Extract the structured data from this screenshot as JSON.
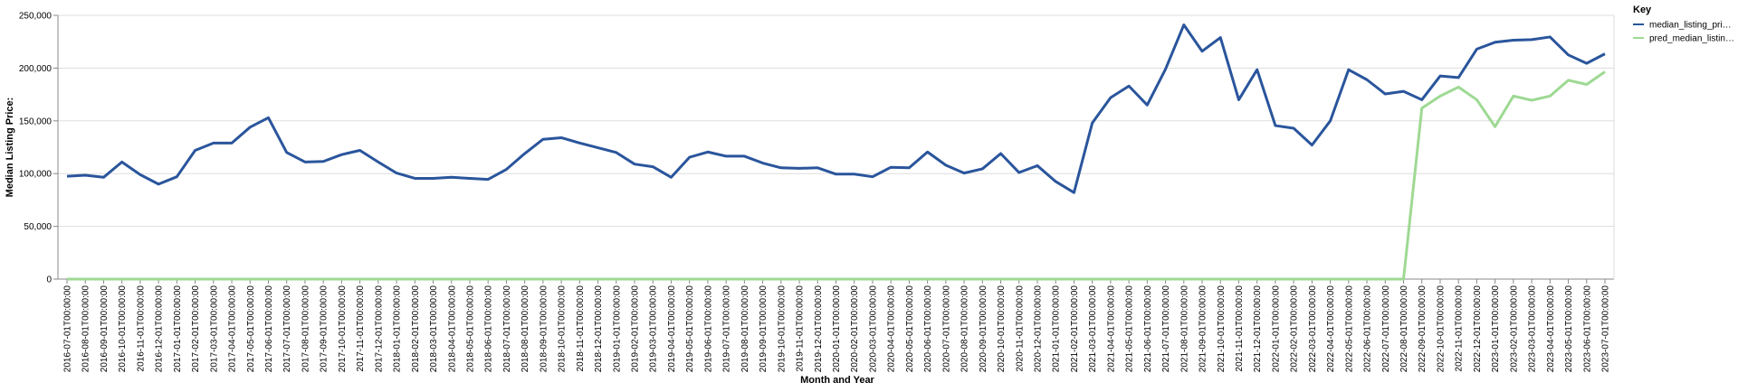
{
  "chart_data": {
    "type": "line",
    "x_label": "Month and Year",
    "y_label": "Median Listing Price:",
    "legend_title": "Key",
    "legend_position": "right",
    "grid": true,
    "categories": [
      "2016-07-01T00:00:00",
      "2016-08-01T00:00:00",
      "2016-09-01T00:00:00",
      "2016-10-01T00:00:00",
      "2016-11-01T00:00:00",
      "2016-12-01T00:00:00",
      "2017-01-01T00:00:00",
      "2017-02-01T00:00:00",
      "2017-03-01T00:00:00",
      "2017-04-01T00:00:00",
      "2017-05-01T00:00:00",
      "2017-06-01T00:00:00",
      "2017-07-01T00:00:00",
      "2017-08-01T00:00:00",
      "2017-09-01T00:00:00",
      "2017-10-01T00:00:00",
      "2017-11-01T00:00:00",
      "2017-12-01T00:00:00",
      "2018-01-01T00:00:00",
      "2018-02-01T00:00:00",
      "2018-03-01T00:00:00",
      "2018-04-01T00:00:00",
      "2018-05-01T00:00:00",
      "2018-06-01T00:00:00",
      "2018-07-01T00:00:00",
      "2018-08-01T00:00:00",
      "2018-09-01T00:00:00",
      "2018-10-01T00:00:00",
      "2018-11-01T00:00:00",
      "2018-12-01T00:00:00",
      "2019-01-01T00:00:00",
      "2019-02-01T00:00:00",
      "2019-03-01T00:00:00",
      "2019-04-01T00:00:00",
      "2019-05-01T00:00:00",
      "2019-06-01T00:00:00",
      "2019-07-01T00:00:00",
      "2019-08-01T00:00:00",
      "2019-09-01T00:00:00",
      "2019-10-01T00:00:00",
      "2019-11-01T00:00:00",
      "2019-12-01T00:00:00",
      "2020-01-01T00:00:00",
      "2020-02-01T00:00:00",
      "2020-03-01T00:00:00",
      "2020-04-01T00:00:00",
      "2020-05-01T00:00:00",
      "2020-06-01T00:00:00",
      "2020-07-01T00:00:00",
      "2020-08-01T00:00:00",
      "2020-09-01T00:00:00",
      "2020-10-01T00:00:00",
      "2020-11-01T00:00:00",
      "2020-12-01T00:00:00",
      "2021-01-01T00:00:00",
      "2021-02-01T00:00:00",
      "2021-03-01T00:00:00",
      "2021-04-01T00:00:00",
      "2021-05-01T00:00:00",
      "2021-06-01T00:00:00",
      "2021-07-01T00:00:00",
      "2021-08-01T00:00:00",
      "2021-09-01T00:00:00",
      "2021-10-01T00:00:00",
      "2021-11-01T00:00:00",
      "2021-12-01T00:00:00",
      "2022-01-01T00:00:00",
      "2022-02-01T00:00:00",
      "2022-03-01T00:00:00",
      "2022-04-01T00:00:00",
      "2022-05-01T00:00:00",
      "2022-06-01T00:00:00",
      "2022-07-01T00:00:00",
      "2022-08-01T00:00:00",
      "2022-09-01T00:00:00",
      "2022-10-01T00:00:00",
      "2022-11-01T00:00:00",
      "2022-12-01T00:00:00",
      "2023-01-01T00:00:00",
      "2023-02-01T00:00:00",
      "2023-03-01T00:00:00",
      "2023-04-01T00:00:00",
      "2023-05-01T00:00:00",
      "2023-06-01T00:00:00",
      "2023-07-01T00:00:00"
    ],
    "series": [
      {
        "name": "median_listing_pri…",
        "color": "#2a559c",
        "values": [
          97500,
          98500,
          96500,
          111000,
          99000,
          90000,
          97000,
          122000,
          129000,
          129000,
          144000,
          153000,
          120000,
          111000,
          111500,
          118000,
          122000,
          111000,
          100500,
          95500,
          95500,
          96500,
          95500,
          94500,
          104000,
          119000,
          132500,
          134000,
          129000,
          124500,
          120000,
          109000,
          106500,
          96500,
          115500,
          120500,
          116500,
          116500,
          110000,
          105500,
          105000,
          105500,
          99500,
          99500,
          97000,
          106000,
          105500,
          120500,
          108000,
          100500,
          104500,
          119000,
          101000,
          107500,
          92500,
          82000,
          148000,
          172000,
          183000,
          165000,
          199000,
          241000,
          216000,
          229000,
          170000,
          198500,
          145500,
          143000,
          127000,
          150000,
          198500,
          189000,
          175500,
          178000,
          170000,
          192500,
          191000,
          218000,
          224500,
          226500,
          227000,
          229500,
          212500,
          204500,
          213500
        ]
      },
      {
        "name": "pred_median_listin…",
        "color": "#9ed993",
        "values": [
          0,
          0,
          0,
          0,
          0,
          0,
          0,
          0,
          0,
          0,
          0,
          0,
          0,
          0,
          0,
          0,
          0,
          0,
          0,
          0,
          0,
          0,
          0,
          0,
          0,
          0,
          0,
          0,
          0,
          0,
          0,
          0,
          0,
          0,
          0,
          0,
          0,
          0,
          0,
          0,
          0,
          0,
          0,
          0,
          0,
          0,
          0,
          0,
          0,
          0,
          0,
          0,
          0,
          0,
          0,
          0,
          0,
          0,
          0,
          0,
          0,
          0,
          0,
          0,
          0,
          0,
          0,
          0,
          0,
          0,
          0,
          0,
          0,
          0,
          162000,
          173500,
          182000,
          170000,
          144500,
          173500,
          169500,
          173500,
          188500,
          184500,
          196500
        ]
      }
    ],
    "ylim": [
      0,
      250000
    ],
    "yticks": [
      0,
      {
        "value": 50000,
        "label": "50,000"
      },
      {
        "value": 100000,
        "label": "100,000"
      },
      {
        "value": 150000,
        "label": "150,000"
      },
      {
        "value": 200000,
        "label": "200,000"
      },
      {
        "value": 250000,
        "label": "250,000"
      }
    ]
  }
}
